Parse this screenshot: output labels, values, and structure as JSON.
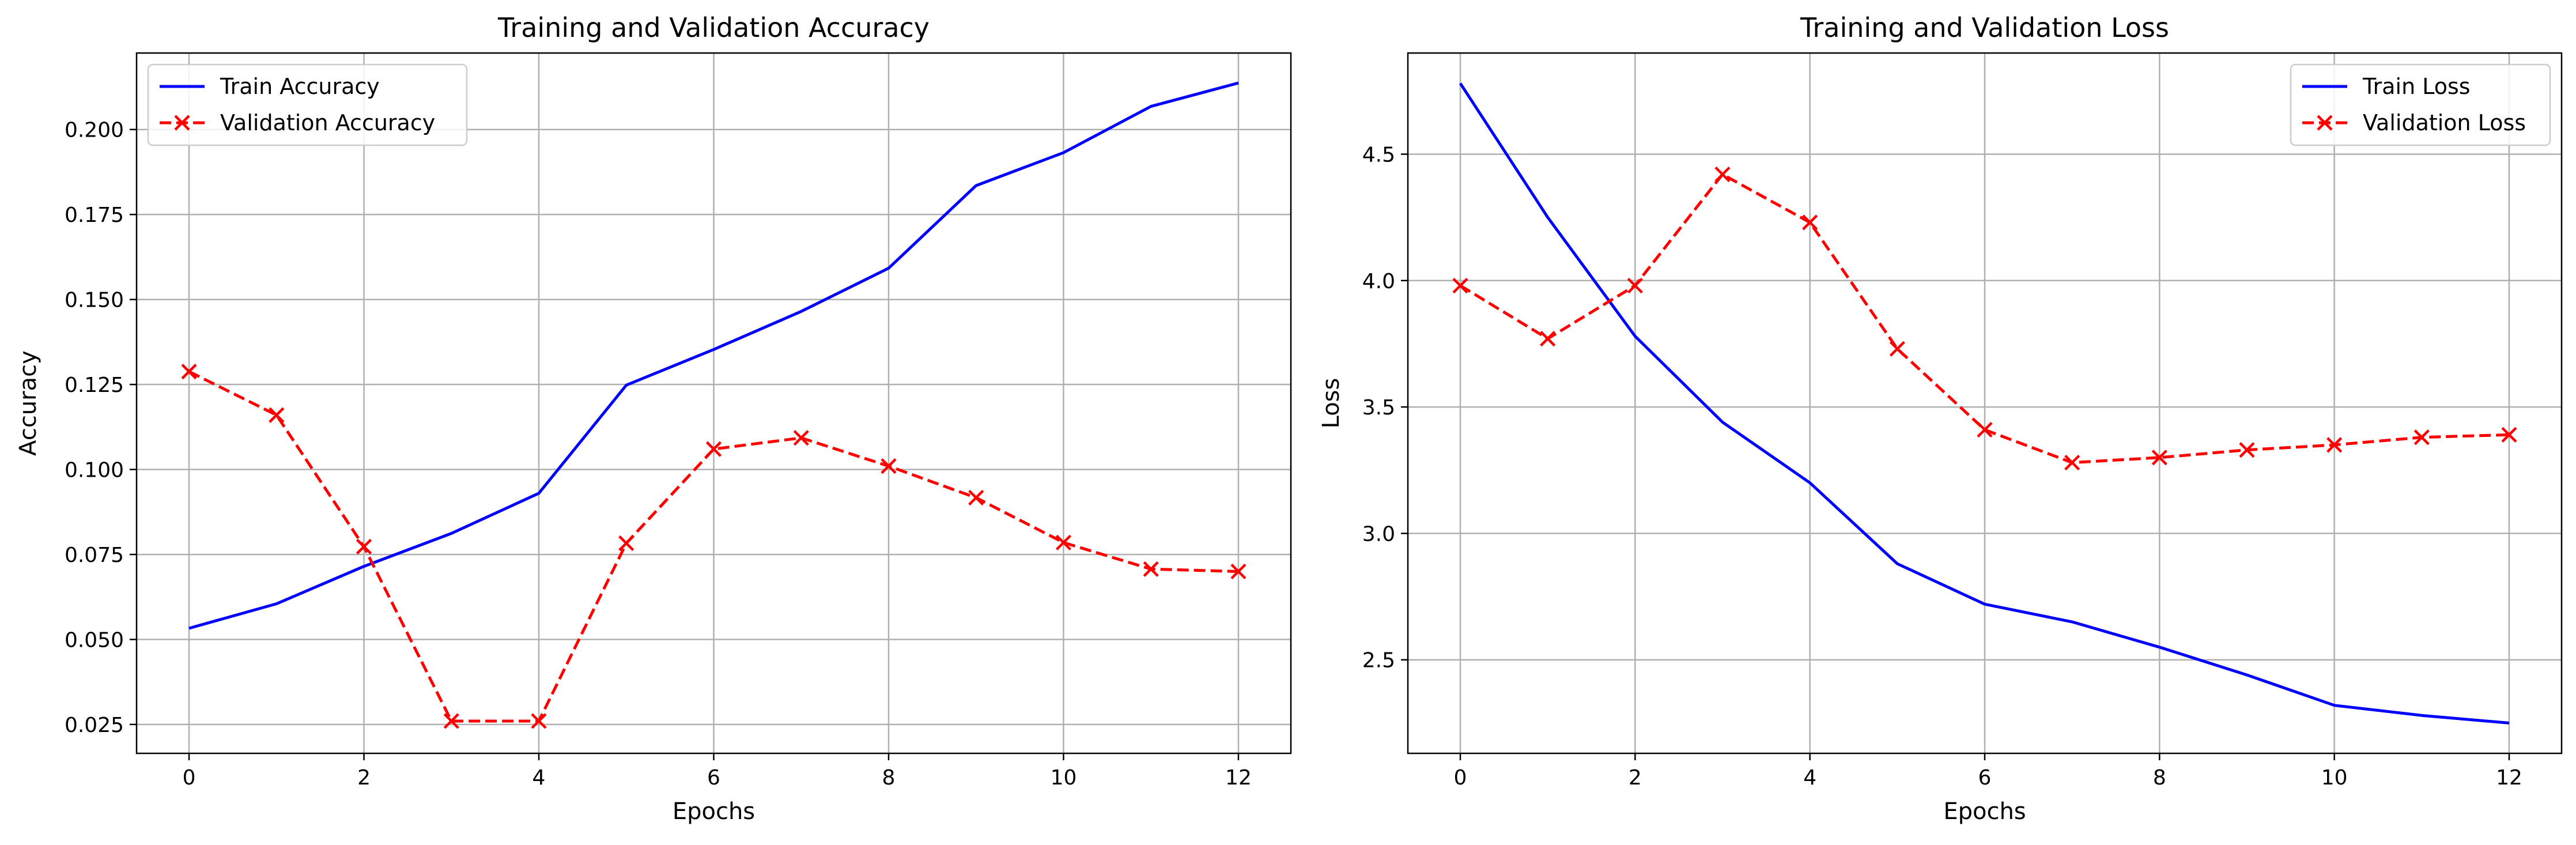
{
  "chart_data": [
    {
      "type": "line",
      "title": "Training and Validation Accuracy",
      "xlabel": "Epochs",
      "ylabel": "Accuracy",
      "xlim": [
        -0.6,
        12.6
      ],
      "ylim": [
        0.0165,
        0.2225
      ],
      "xticks": [
        0,
        2,
        4,
        6,
        8,
        10,
        12
      ],
      "yticks": [
        0.025,
        0.05,
        0.075,
        0.1,
        0.125,
        0.15,
        0.175,
        0.2
      ],
      "ytick_labels": [
        "0.025",
        "0.050",
        "0.075",
        "0.100",
        "0.125",
        "0.150",
        "0.175",
        "0.200"
      ],
      "grid": true,
      "legend_position": "top-left",
      "x": [
        0,
        1,
        2,
        3,
        4,
        5,
        6,
        7,
        8,
        9,
        10,
        11,
        12
      ],
      "series": [
        {
          "name": "Train Accuracy",
          "color": "#0000ff",
          "style": "solid",
          "marker": "none",
          "values": [
            0.0533,
            0.0605,
            0.0715,
            0.0812,
            0.093,
            0.1248,
            0.1353,
            0.1465,
            0.1592,
            0.1835,
            0.1932,
            0.2068,
            0.2137
          ]
        },
        {
          "name": "Validation Accuracy",
          "color": "#ff0000",
          "style": "dashed",
          "marker": "x",
          "values": [
            0.1288,
            0.116,
            0.0773,
            0.026,
            0.026,
            0.0783,
            0.106,
            0.1093,
            0.101,
            0.0917,
            0.0785,
            0.0707,
            0.07
          ]
        }
      ]
    },
    {
      "type": "line",
      "title": "Training and Validation Loss",
      "xlabel": "Epochs",
      "ylabel": "Loss",
      "xlim": [
        -0.6,
        12.6
      ],
      "ylim": [
        2.13,
        4.9
      ],
      "xticks": [
        0,
        2,
        4,
        6,
        8,
        10,
        12
      ],
      "yticks": [
        2.5,
        3.0,
        3.5,
        4.0,
        4.5
      ],
      "ytick_labels": [
        "2.5",
        "3.0",
        "3.5",
        "4.0",
        "4.5"
      ],
      "grid": true,
      "legend_position": "top-right",
      "x": [
        0,
        1,
        2,
        3,
        4,
        5,
        6,
        7,
        8,
        9,
        10,
        11,
        12
      ],
      "series": [
        {
          "name": "Train Loss",
          "color": "#0000ff",
          "style": "solid",
          "marker": "none",
          "values": [
            4.78,
            4.25,
            3.78,
            3.44,
            3.2,
            2.88,
            2.72,
            2.65,
            2.55,
            2.44,
            2.32,
            2.28,
            2.25
          ]
        },
        {
          "name": "Validation Loss",
          "color": "#ff0000",
          "style": "dashed",
          "marker": "x",
          "values": [
            3.98,
            3.77,
            3.98,
            4.42,
            4.23,
            3.73,
            3.41,
            3.28,
            3.3,
            3.33,
            3.35,
            3.38,
            3.39
          ]
        }
      ]
    }
  ]
}
